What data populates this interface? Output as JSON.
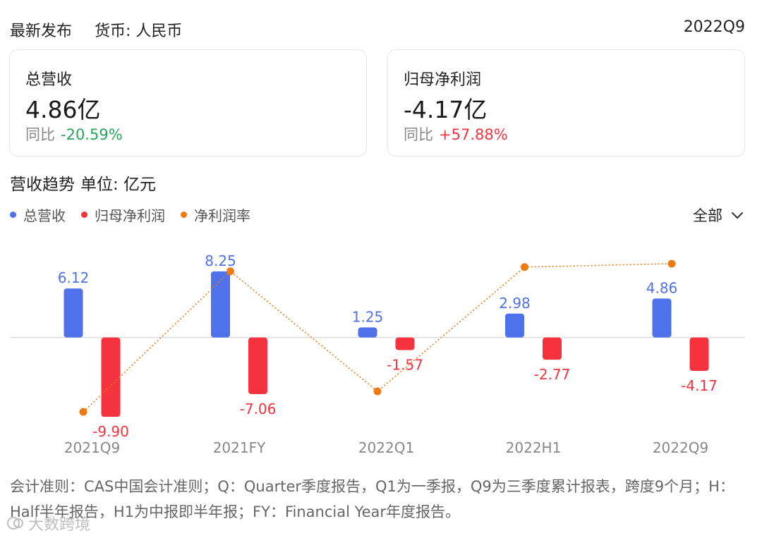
{
  "header": {
    "title": "最新发布",
    "currency": "货币: 人民币",
    "period": "2022Q9"
  },
  "cards": [
    {
      "label": "总营收",
      "value": "4.86亿",
      "yoy_label": "同比",
      "yoy": "-20.59%"
    },
    {
      "label": "归母净利润",
      "value": "-4.17亿",
      "yoy_label": "同比",
      "yoy": "+57.88%"
    }
  ],
  "section": {
    "title": "营收趋势",
    "unit": "单位: 亿元"
  },
  "legend": [
    {
      "name": "总营收",
      "color": "#4f72ea"
    },
    {
      "name": "归母净利润",
      "color": "#f5333f"
    },
    {
      "name": "净利润率",
      "color": "#f07a12"
    }
  ],
  "range": {
    "label": "全部"
  },
  "chart_data": {
    "type": "bar",
    "categories": [
      "2021Q9",
      "2021FY",
      "2022Q1",
      "2022H1",
      "2022Q9"
    ],
    "series": [
      {
        "name": "总营收",
        "values": [
          6.12,
          8.25,
          1.25,
          2.98,
          4.86
        ],
        "labels": [
          "6.12",
          "8.25",
          "1.25",
          "2.98",
          "4.86"
        ],
        "color": "#4f72ea"
      },
      {
        "name": "归母净利润",
        "values": [
          -9.9,
          -7.06,
          -1.57,
          -2.77,
          -4.17
        ],
        "labels": [
          "-9.90",
          "-7.06",
          "-1.57",
          "-2.77",
          "-4.17"
        ],
        "color": "#f5333f"
      }
    ],
    "line_series": {
      "name": "净利润率",
      "values": [
        -161.76,
        85.58,
        -125.6,
        92.95,
        98.9
      ],
      "ylim": [
        -200,
        110
      ],
      "color": "#f07a12",
      "style": "dotted"
    },
    "ylim": [
      -12,
      10
    ],
    "grid": false
  },
  "footnote": "会计准则：CAS中国会计准则；Q：Quarter季度报告，Q1为一季报，Q9为三季度累计报表，跨度9个月；H：Half半年报告，H1为中报即半年报；FY：Financial Year年度报告。",
  "watermark": {
    "text": "大数跨境"
  }
}
